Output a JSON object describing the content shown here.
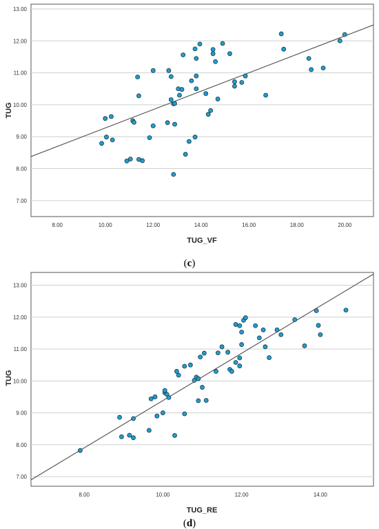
{
  "chart_data": [
    {
      "type": "scatter",
      "panel_label": "c",
      "xlabel": "TUG_VF",
      "ylabel": "TUG",
      "xlim": [
        6.9,
        21.2
      ],
      "ylim": [
        6.5,
        13.15
      ],
      "xticks": [
        8,
        10,
        12,
        14,
        16,
        18,
        20
      ],
      "xtick_labels": [
        "8.00",
        "10.00",
        "12.00",
        "14.00",
        "16.00",
        "18.00",
        "20.00"
      ],
      "yticks": [
        7,
        8,
        9,
        10,
        11,
        12,
        13
      ],
      "ytick_labels": [
        "7.00",
        "8.00",
        "9.00",
        "10.00",
        "11.00",
        "12.00",
        "13.00"
      ],
      "grid": "horizontal",
      "point_color": "#1f9fd0",
      "line_color": "#4a4a4a",
      "fit_line": [
        [
          6.9,
          8.38
        ],
        [
          21.2,
          12.5
        ]
      ],
      "points": [
        [
          9.85,
          8.79
        ],
        [
          10.0,
          9.57
        ],
        [
          10.05,
          8.99
        ],
        [
          10.25,
          9.63
        ],
        [
          10.3,
          8.9
        ],
        [
          10.9,
          8.24
        ],
        [
          11.05,
          8.3
        ],
        [
          11.15,
          9.5
        ],
        [
          11.2,
          9.45
        ],
        [
          11.35,
          10.87
        ],
        [
          11.4,
          10.28
        ],
        [
          11.4,
          8.29
        ],
        [
          11.55,
          8.25
        ],
        [
          11.85,
          8.97
        ],
        [
          12.0,
          11.07
        ],
        [
          12.0,
          9.34
        ],
        [
          12.6,
          9.44
        ],
        [
          12.65,
          11.07
        ],
        [
          12.75,
          10.88
        ],
        [
          12.75,
          10.16
        ],
        [
          12.85,
          10.03
        ],
        [
          12.9,
          9.39
        ],
        [
          12.9,
          10.04
        ],
        [
          12.85,
          7.82
        ],
        [
          13.05,
          10.5
        ],
        [
          13.1,
          10.3
        ],
        [
          13.2,
          10.48
        ],
        [
          13.25,
          11.56
        ],
        [
          13.35,
          8.45
        ],
        [
          13.5,
          8.85
        ],
        [
          13.6,
          10.75
        ],
        [
          13.75,
          11.75
        ],
        [
          13.75,
          8.99
        ],
        [
          13.8,
          11.45
        ],
        [
          13.8,
          10.9
        ],
        [
          13.8,
          10.5
        ],
        [
          13.95,
          11.9
        ],
        [
          14.2,
          10.35
        ],
        [
          14.3,
          9.7
        ],
        [
          14.4,
          9.82
        ],
        [
          14.5,
          11.73
        ],
        [
          14.5,
          11.6
        ],
        [
          14.6,
          11.35
        ],
        [
          14.7,
          10.18
        ],
        [
          14.9,
          11.92
        ],
        [
          15.2,
          11.6
        ],
        [
          15.4,
          10.72
        ],
        [
          15.4,
          10.58
        ],
        [
          15.7,
          10.7
        ],
        [
          15.85,
          10.9
        ],
        [
          16.7,
          10.3
        ],
        [
          17.35,
          12.22
        ],
        [
          17.45,
          11.74
        ],
        [
          18.5,
          11.45
        ],
        [
          18.6,
          11.1
        ],
        [
          19.1,
          11.15
        ],
        [
          19.8,
          12.0
        ],
        [
          20.0,
          12.2
        ]
      ]
    },
    {
      "type": "scatter",
      "panel_label": "d",
      "xlabel": "TUG_RE",
      "ylabel": "TUG",
      "xlim": [
        6.65,
        15.35
      ],
      "ylim": [
        6.7,
        13.4
      ],
      "xticks": [
        8,
        10,
        12,
        14
      ],
      "xtick_labels": [
        "8.00",
        "10.00",
        "12.00",
        "14.00"
      ],
      "yticks": [
        7,
        8,
        9,
        10,
        11,
        12,
        13
      ],
      "ytick_labels": [
        "7.00",
        "8.00",
        "9.00",
        "10.00",
        "11.00",
        "12.00",
        "13.00"
      ],
      "grid": "horizontal",
      "point_color": "#1f9fd0",
      "line_color": "#4a4a4a",
      "fit_line": [
        [
          6.65,
          6.9
        ],
        [
          15.35,
          13.35
        ]
      ],
      "points": [
        [
          7.9,
          7.82
        ],
        [
          8.9,
          8.86
        ],
        [
          8.95,
          8.25
        ],
        [
          9.15,
          8.3
        ],
        [
          9.25,
          8.22
        ],
        [
          9.25,
          8.82
        ],
        [
          9.65,
          8.45
        ],
        [
          9.7,
          9.44
        ],
        [
          9.8,
          9.5
        ],
        [
          9.85,
          8.9
        ],
        [
          10.0,
          9.0
        ],
        [
          10.05,
          9.63
        ],
        [
          10.05,
          9.7
        ],
        [
          10.1,
          9.58
        ],
        [
          10.15,
          9.48
        ],
        [
          10.3,
          8.29
        ],
        [
          10.35,
          10.3
        ],
        [
          10.4,
          10.18
        ],
        [
          10.55,
          10.46
        ],
        [
          10.55,
          8.97
        ],
        [
          10.7,
          10.5
        ],
        [
          10.8,
          10.02
        ],
        [
          10.85,
          10.12
        ],
        [
          10.9,
          10.07
        ],
        [
          10.9,
          9.38
        ],
        [
          10.95,
          10.75
        ],
        [
          11.0,
          9.8
        ],
        [
          11.05,
          10.87
        ],
        [
          11.1,
          9.39
        ],
        [
          11.35,
          10.3
        ],
        [
          11.4,
          10.88
        ],
        [
          11.5,
          11.07
        ],
        [
          11.65,
          10.9
        ],
        [
          11.7,
          10.36
        ],
        [
          11.75,
          10.3
        ],
        [
          11.85,
          10.58
        ],
        [
          11.85,
          11.77
        ],
        [
          11.95,
          11.73
        ],
        [
          11.95,
          10.72
        ],
        [
          11.95,
          10.47
        ],
        [
          12.0,
          11.14
        ],
        [
          12.0,
          11.53
        ],
        [
          12.05,
          11.9
        ],
        [
          12.1,
          11.98
        ],
        [
          12.35,
          11.73
        ],
        [
          12.45,
          11.35
        ],
        [
          12.55,
          11.6
        ],
        [
          12.6,
          11.07
        ],
        [
          12.7,
          10.73
        ],
        [
          12.9,
          11.6
        ],
        [
          13.0,
          11.45
        ],
        [
          13.35,
          11.92
        ],
        [
          13.6,
          11.1
        ],
        [
          13.9,
          12.2
        ],
        [
          13.95,
          11.74
        ],
        [
          14.0,
          11.45
        ],
        [
          14.65,
          12.22
        ]
      ]
    }
  ]
}
